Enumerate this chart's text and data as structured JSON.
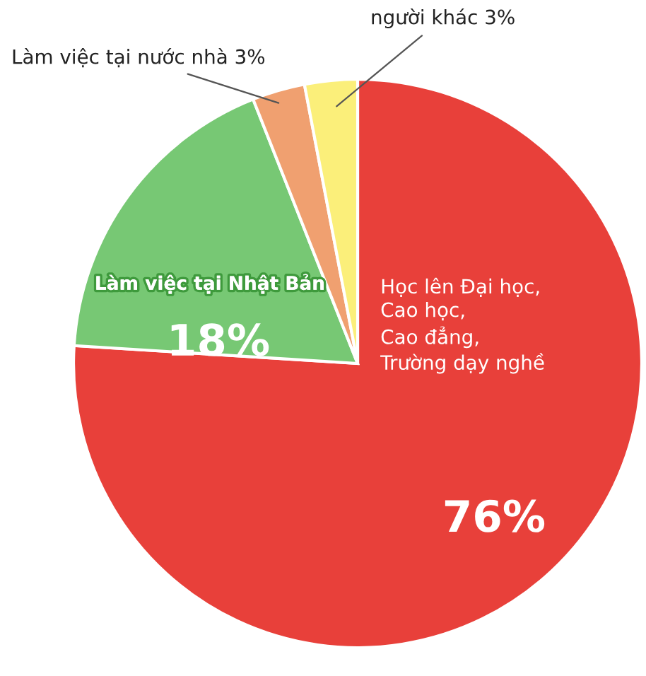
{
  "chart_data": {
    "type": "pie",
    "categories": [
      "Học lên Đại học,\nCao học,\nCao đẳng,\nTrường dạy nghề",
      "Làm việc tại Nhật Bản",
      "Làm việc tại nước nhà",
      "người khác"
    ],
    "values": [
      76,
      18,
      3,
      3
    ],
    "value_labels": [
      "76%",
      "18%",
      "3%",
      "3%"
    ],
    "colors": [
      "#e8403a",
      "#77c874",
      "#f0a070",
      "#fbef7a"
    ]
  }
}
